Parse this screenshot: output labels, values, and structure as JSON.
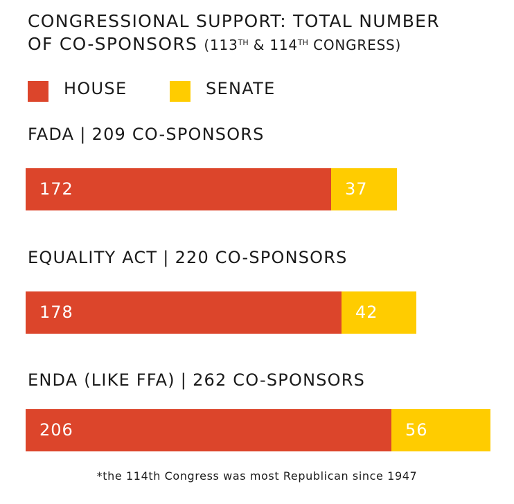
{
  "title": {
    "line1": "CONGRESSIONAL SUPPORT: TOTAL NUMBER",
    "line2_main": "OF CO-SPONSORS",
    "paren_open": "(113",
    "sup1": "TH",
    "amp": " & 114",
    "sup2": "TH",
    "paren_close": " CONGRESS)"
  },
  "legend": [
    {
      "label": "HOUSE",
      "color": "#dc452b"
    },
    {
      "label": "SENATE",
      "color": "#ffcc00"
    }
  ],
  "separator": "|",
  "footnote": "*the 114th Congress was most Republican since 1947",
  "chart_data": {
    "type": "bar",
    "orientation": "horizontal",
    "stacked": true,
    "categories": [
      "FADA",
      "EQUALITY ACT",
      "ENDA (LIKE FFA)"
    ],
    "totals_text": [
      "209 CO-SPONSORS",
      "220 CO-SPONSORS",
      "262 CO-SPONSORS"
    ],
    "series": [
      {
        "name": "HOUSE",
        "color": "#dc452b",
        "values": [
          172,
          178,
          206
        ]
      },
      {
        "name": "SENATE",
        "color": "#ffcc00",
        "values": [
          37,
          42,
          56
        ]
      }
    ]
  }
}
